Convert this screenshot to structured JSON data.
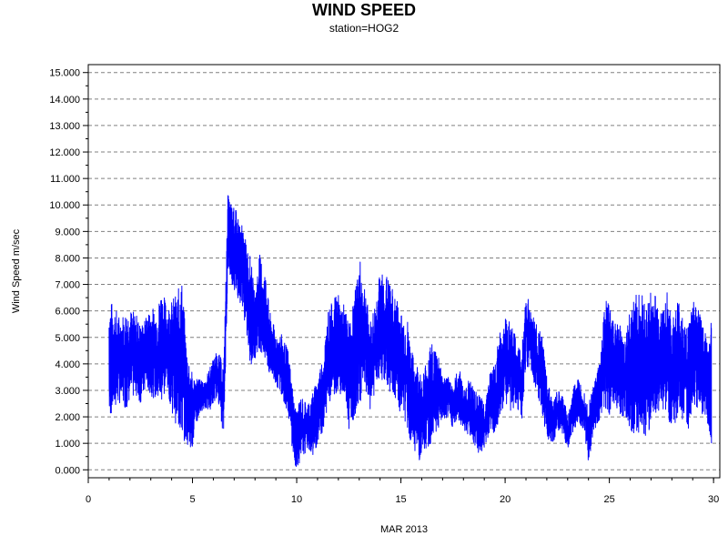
{
  "chart_data": {
    "type": "line",
    "title": "WIND SPEED",
    "subtitle": "station=HOG2",
    "xlabel": "MAR 2013",
    "ylabel": "Wind Speed m/sec",
    "xlim": [
      0,
      30.3
    ],
    "ylim": [
      -0.3,
      15.3
    ],
    "x_ticks": [
      0,
      5,
      10,
      15,
      20,
      25,
      30
    ],
    "y_ticks": [
      "0.000",
      "1.000",
      "2.000",
      "3.000",
      "4.000",
      "5.000",
      "6.000",
      "7.000",
      "8.000",
      "9.000",
      "10.000",
      "11.000",
      "12.000",
      "13.000",
      "14.000",
      "15.000"
    ],
    "grid": "horizontal dashed",
    "line_color": "#0000ff",
    "series": [
      {
        "name": "",
        "x": [
          1.0,
          1.2,
          1.5,
          1.8,
          2.0,
          2.3,
          2.5,
          2.8,
          3.0,
          3.3,
          3.5,
          3.8,
          4.0,
          4.3,
          4.5,
          4.7,
          5.0,
          5.3,
          5.5,
          5.8,
          6.0,
          6.2,
          6.5,
          6.7,
          6.9,
          7.1,
          7.4,
          7.6,
          7.8,
          8.0,
          8.2,
          8.5,
          8.7,
          9.0,
          9.3,
          9.6,
          9.9,
          10.0,
          10.2,
          10.5,
          10.8,
          11.0,
          11.3,
          11.5,
          11.8,
          12.0,
          12.3,
          12.5,
          12.8,
          13.0,
          13.3,
          13.5,
          13.8,
          14.0,
          14.3,
          14.5,
          14.8,
          15.0,
          15.3,
          15.5,
          15.8,
          16.0,
          16.3,
          16.5,
          16.8,
          17.0,
          17.3,
          17.5,
          17.8,
          18.0,
          18.3,
          18.5,
          18.8,
          19.0,
          19.3,
          19.5,
          19.8,
          20.0,
          20.3,
          20.5,
          20.8,
          21.0,
          21.3,
          21.5,
          21.8,
          22.0,
          22.3,
          22.5,
          22.8,
          23.0,
          23.3,
          23.5,
          23.8,
          24.0,
          24.3,
          24.5,
          24.8,
          25.0,
          25.3,
          25.5,
          25.8,
          26.0,
          26.3,
          26.5,
          26.8,
          27.0,
          27.3,
          27.5,
          27.8,
          28.0,
          28.3,
          28.5,
          28.8,
          29.0,
          29.3,
          29.5,
          29.8,
          29.9
        ],
        "y_min": [
          1.9,
          2.2,
          2.5,
          2.3,
          2.6,
          2.8,
          2.5,
          3.0,
          2.8,
          2.6,
          2.5,
          3.0,
          2.2,
          1.5,
          1.2,
          1.0,
          0.8,
          2.0,
          2.3,
          2.2,
          2.5,
          2.8,
          1.2,
          7.5,
          7.0,
          6.5,
          6.2,
          5.0,
          3.8,
          4.2,
          4.6,
          4.0,
          3.5,
          3.2,
          2.8,
          2.0,
          0.1,
          0.1,
          0.3,
          0.8,
          0.5,
          1.0,
          1.5,
          2.5,
          2.8,
          3.0,
          2.6,
          1.5,
          2.0,
          2.5,
          3.0,
          2.2,
          3.0,
          3.5,
          3.2,
          2.8,
          2.5,
          2.0,
          1.5,
          1.0,
          0.5,
          0.1,
          0.8,
          1.0,
          1.5,
          1.8,
          2.0,
          1.5,
          1.8,
          1.5,
          1.2,
          1.0,
          0.5,
          0.8,
          1.5,
          1.2,
          2.0,
          2.5,
          2.2,
          2.5,
          1.8,
          4.0,
          3.5,
          3.0,
          2.0,
          1.2,
          1.0,
          1.5,
          1.2,
          0.8,
          1.5,
          1.8,
          1.5,
          0.1,
          1.5,
          1.8,
          2.2,
          2.0,
          2.5,
          2.0,
          1.8,
          1.5,
          1.2,
          1.5,
          1.0,
          1.8,
          2.2,
          2.0,
          1.8,
          1.5,
          2.0,
          1.8,
          1.5,
          2.5,
          2.2,
          2.0,
          1.5,
          1.0,
          0.3,
          0.2
        ],
        "y_max": [
          6.4,
          6.3,
          5.8,
          6.0,
          6.1,
          5.9,
          5.5,
          5.8,
          6.2,
          6.0,
          6.9,
          6.2,
          6.4,
          6.8,
          7.2,
          4.8,
          3.6,
          3.5,
          3.3,
          3.8,
          4.2,
          4.5,
          4.0,
          10.4,
          10.0,
          9.8,
          9.2,
          8.5,
          8.0,
          6.5,
          8.2,
          7.5,
          6.0,
          5.2,
          5.1,
          4.5,
          2.5,
          2.2,
          2.8,
          2.5,
          3.0,
          3.5,
          4.5,
          6.0,
          6.5,
          6.6,
          6.2,
          5.5,
          6.8,
          8.0,
          7.0,
          5.5,
          6.5,
          7.5,
          7.4,
          7.0,
          6.5,
          6.0,
          5.8,
          4.5,
          4.0,
          3.5,
          4.5,
          4.8,
          4.5,
          3.5,
          3.5,
          3.2,
          4.0,
          3.0,
          3.5,
          3.0,
          2.8,
          2.5,
          3.8,
          4.0,
          5.5,
          5.7,
          5.6,
          5.0,
          4.5,
          6.8,
          6.0,
          5.5,
          5.0,
          3.5,
          2.5,
          3.0,
          2.8,
          2.0,
          3.2,
          3.5,
          3.0,
          2.5,
          3.5,
          4.0,
          6.5,
          6.2,
          5.8,
          5.5,
          5.0,
          6.5,
          6.6,
          6.8,
          6.2,
          6.9,
          6.5,
          6.0,
          6.8,
          5.5,
          6.5,
          5.8,
          5.5,
          6.5,
          6.0,
          5.5,
          5.0,
          5.8,
          4.5,
          3.0
        ]
      }
    ]
  }
}
